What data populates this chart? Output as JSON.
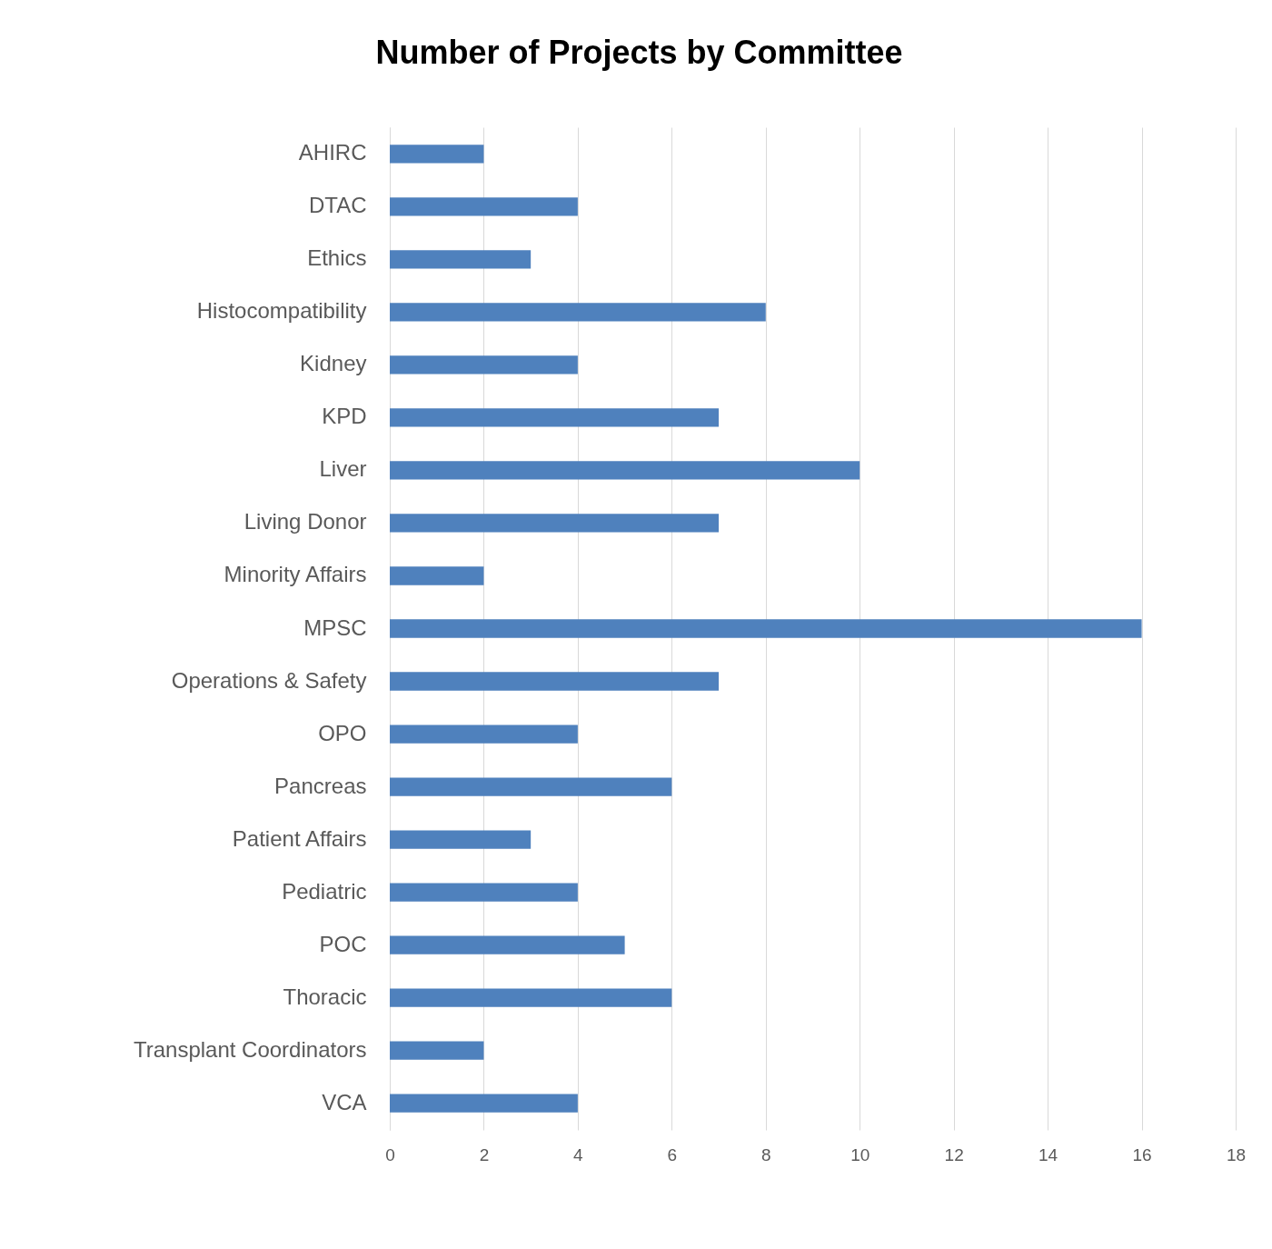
{
  "chart_data": {
    "type": "bar",
    "orientation": "horizontal",
    "title": "Number of Projects by Committee",
    "categories": [
      "AHIRC",
      "DTAC",
      "Ethics",
      "Histocompatibility",
      "Kidney",
      "KPD",
      "Liver",
      "Living Donor",
      "Minority Affairs",
      "MPSC",
      "Operations & Safety",
      "OPO",
      "Pancreas",
      "Patient Affairs",
      "Pediatric",
      "POC",
      "Thoracic",
      "Transplant Coordinators",
      "VCA"
    ],
    "values": [
      2,
      4,
      3,
      8,
      4,
      7,
      10,
      7,
      2,
      16,
      7,
      4,
      6,
      3,
      4,
      5,
      6,
      2,
      4
    ],
    "color": "#4f81bd",
    "xlim": [
      0,
      18
    ],
    "xticks": [
      0,
      2,
      4,
      6,
      8,
      10,
      12,
      14,
      16,
      18
    ],
    "grid": "x"
  }
}
